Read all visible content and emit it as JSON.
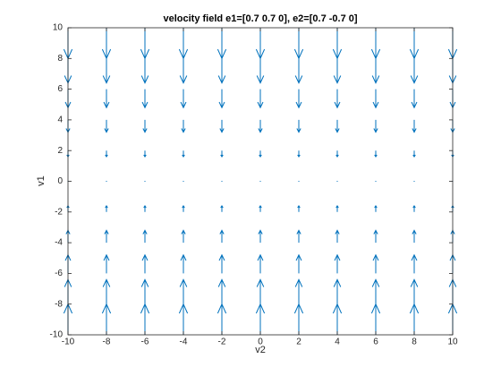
{
  "chart_data": {
    "type": "quiver",
    "title": "velocity field e1=[0.7 0.7 0], e2=[0.7 -0.7 0]",
    "x_label": "v2",
    "y_label": "v1",
    "x": [
      -10,
      -8,
      -6,
      -4,
      -2,
      0,
      2,
      4,
      6,
      8,
      10
    ],
    "y": [
      -10,
      -8,
      -6,
      -4,
      -2,
      0,
      2,
      4,
      6,
      8,
      10
    ],
    "v": [
      2,
      1.6,
      1.2,
      0.8,
      0.4,
      0,
      -0.4,
      -0.8,
      -1.2,
      -1.6,
      -2
    ],
    "color": "#0072bd",
    "xlim": [
      -10,
      10
    ],
    "xticks": [
      -10,
      -8,
      -6,
      -4,
      -2,
      0,
      2,
      4,
      6,
      8,
      10
    ],
    "ylim": [
      -10,
      10
    ],
    "yticks": [
      -10,
      -8,
      -6,
      -4,
      -2,
      0,
      2,
      4,
      6,
      8,
      10
    ]
  }
}
